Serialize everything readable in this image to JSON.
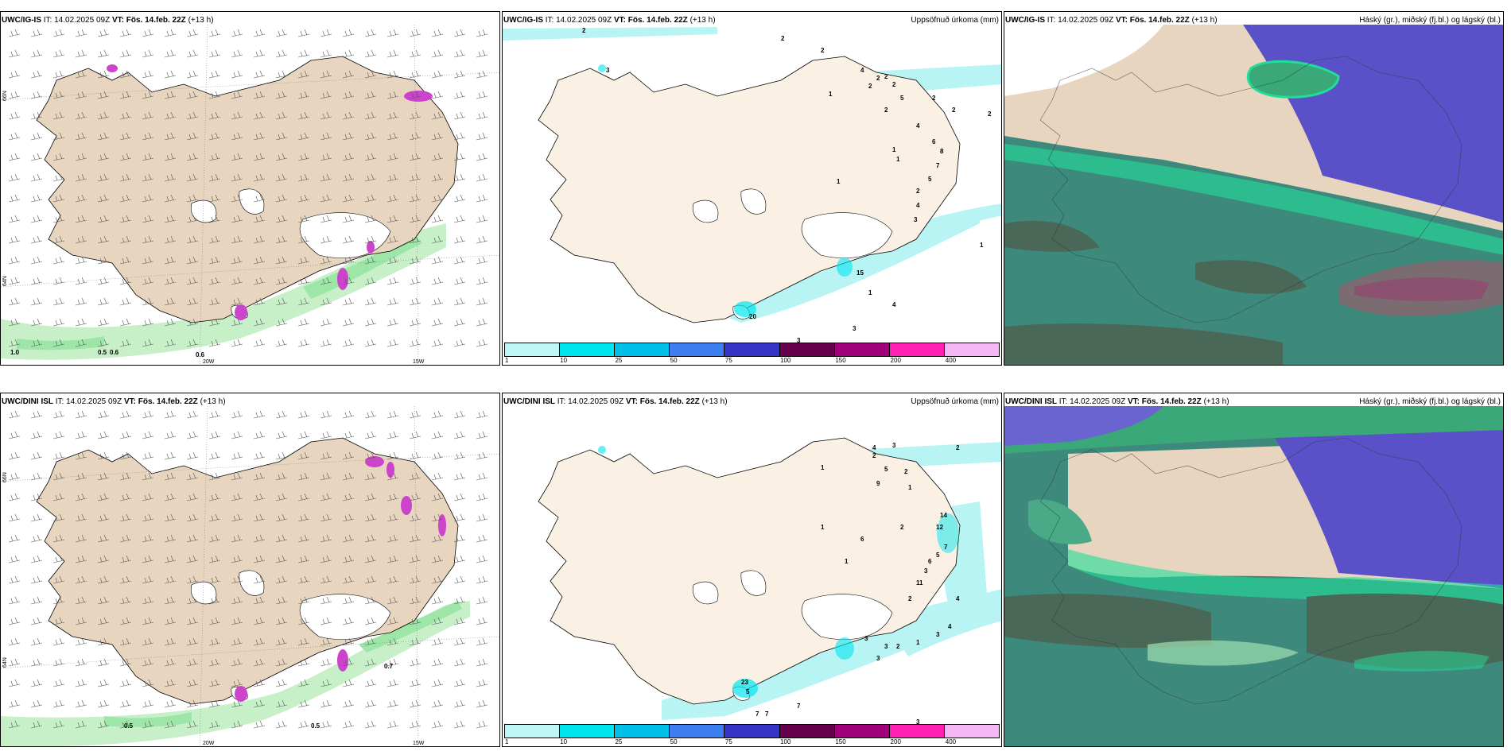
{
  "panels": [
    {
      "id": "p1",
      "model": "UWC/IG-IS",
      "it_label": "IT:",
      "it_value": "14.02.2025 09Z",
      "vt_label": "VT:",
      "vt_value": "Fös. 14.feb. 22Z",
      "lead": "(+13 h)",
      "right_title": ""
    },
    {
      "id": "p2",
      "model": "UWC/IG-IS",
      "it_label": "IT:",
      "it_value": "14.02.2025 09Z",
      "vt_label": "VT:",
      "vt_value": "Fös. 14.feb. 22Z",
      "lead": "(+13 h)",
      "right_title": "Uppsöfnuð úrkoma (mm)"
    },
    {
      "id": "p3",
      "model": "UWC/IG-IS",
      "it_label": "IT:",
      "it_value": "14.02.2025 09Z",
      "vt_label": "VT:",
      "vt_value": "Fös. 14.feb. 22Z",
      "lead": "(+13 h)",
      "right_title": "Háský (gr.), miðský (fj.bl.) og lágský (bl.)"
    },
    {
      "id": "p4",
      "model": "UWC/DINI ISL",
      "it_label": "IT:",
      "it_value": "14.02.2025 09Z",
      "vt_label": "VT:",
      "vt_value": "Fös. 14.feb. 22Z",
      "lead": "(+13 h)",
      "right_title": ""
    },
    {
      "id": "p5",
      "model": "UWC/DINI ISL",
      "it_label": "IT:",
      "it_value": "14.02.2025 09Z",
      "vt_label": "VT:",
      "vt_value": "Fös. 14.feb. 22Z",
      "lead": "(+13 h)",
      "right_title": "Uppsöfnuð úrkoma (mm)"
    },
    {
      "id": "p6",
      "model": "UWC/DINI ISL",
      "it_label": "IT:",
      "it_value": "14.02.2025 09Z",
      "vt_label": "VT:",
      "vt_value": "Fös. 14.feb. 22Z",
      "lead": "(+13 h)",
      "right_title": "Háský (gr.), miðský (fj.bl.) og lágský (bl.)"
    }
  ],
  "colorbar": {
    "labels": [
      "1",
      "10",
      "25",
      "50",
      "75",
      "100",
      "150",
      "200",
      "400"
    ],
    "colors": [
      "#bff7f7",
      "#00e6f0",
      "#00bfe6",
      "#3d7ff0",
      "#3333c8",
      "#66004d",
      "#a0007a",
      "#ff1fb0",
      "#f5b8f5"
    ]
  },
  "axis": {
    "lat_66": "66N",
    "lat_64": "64N",
    "lon_25": "25W",
    "lon_20": "20W",
    "lon_15": "15W"
  },
  "p1_labels": [
    "1.0",
    "0.5",
    "0.6",
    "0.6"
  ],
  "p4_labels": [
    "0.7",
    "0.5",
    "0.5"
  ],
  "p2_numbers": [
    "2",
    "2",
    "2",
    "3",
    "4",
    "2",
    "2",
    "2",
    "2",
    "5",
    "2",
    "2",
    "2",
    "1",
    "2",
    "4",
    "6",
    "8",
    "1",
    "1",
    "7",
    "5",
    "1",
    "2",
    "4",
    "3",
    "1",
    "15",
    "1",
    "4",
    "3",
    "20",
    "3",
    "5"
  ],
  "p5_numbers": [
    "2",
    "4",
    "3",
    "2",
    "1",
    "5",
    "2",
    "9",
    "1",
    "14",
    "12",
    "1",
    "2",
    "6",
    "7",
    "5",
    "6",
    "3",
    "11",
    "2",
    "4",
    "1",
    "1",
    "4",
    "3",
    "3",
    "2",
    "3",
    "3",
    "23",
    "5",
    "7",
    "7",
    "7",
    "3"
  ],
  "colors": {
    "land": "#e8d5c0",
    "land_precip": "#fbf0e4",
    "cyan": "#b8f4f4",
    "green_light": "#c8f0c8",
    "green": "#9ee6a8",
    "magenta": "#cc44cc",
    "cloud_teal": "#3d8a7c",
    "cloud_blue": "#5a50c8",
    "cloud_green": "#22dd99"
  }
}
